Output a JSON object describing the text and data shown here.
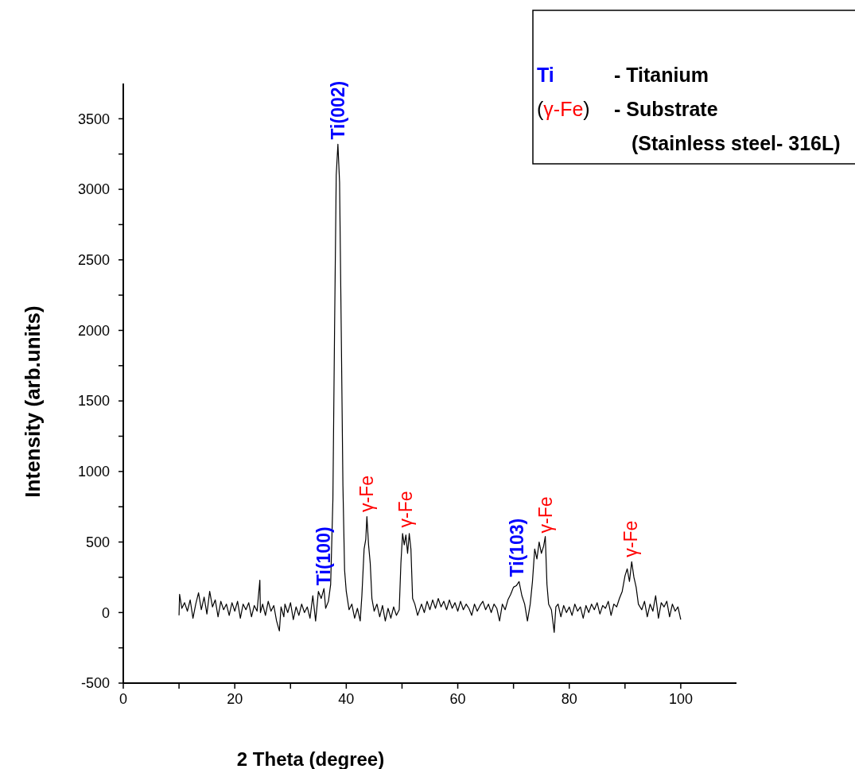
{
  "chart_data": {
    "type": "line",
    "xlabel": "2 Theta (degree)",
    "ylabel": "Intensity (arb.units)",
    "xlim": [
      0,
      110
    ],
    "ylim": [
      -500,
      3750
    ],
    "xticks": [
      0,
      {
        "value": 10,
        "label": null
      },
      20,
      {
        "value": 30,
        "label": null
      },
      40,
      {
        "value": 50,
        "label": null
      },
      60,
      {
        "value": 70,
        "label": null
      },
      80,
      {
        "value": 90,
        "label": null
      },
      100
    ],
    "yticks": [
      -500,
      {
        "value": -250,
        "label": null
      },
      0,
      {
        "value": 250,
        "label": null
      },
      500,
      {
        "value": 750,
        "label": null
      },
      1000,
      {
        "value": 1250,
        "label": null
      },
      1500,
      {
        "value": 1750,
        "label": null
      },
      2000,
      {
        "value": 2250,
        "label": null
      },
      2500,
      {
        "value": 2750,
        "label": null
      },
      3000,
      {
        "value": 3250,
        "label": null
      },
      3500
    ],
    "grid": false,
    "marker": "none",
    "line_style": "solid",
    "series": [
      {
        "color": "#000000",
        "x": [
          10,
          10.1,
          10.5,
          11,
          11.5,
          12,
          12.5,
          13,
          13.5,
          14,
          14.5,
          15,
          15.5,
          16,
          16.5,
          17,
          17.5,
          18,
          18.5,
          19,
          19.5,
          20,
          20.5,
          21,
          21.5,
          22,
          22.5,
          23,
          23.5,
          24,
          24.5,
          24.6,
          25,
          25.5,
          26,
          26.5,
          27,
          27.5,
          28,
          28.3,
          28.8,
          29,
          29.5,
          30,
          30.5,
          31,
          31.5,
          32,
          32.5,
          33,
          33.5,
          34,
          34.5,
          35,
          35.5,
          36,
          36.3,
          36.8,
          37.2,
          37.6,
          37.9,
          38.2,
          38.5,
          38.8,
          39.1,
          39.4,
          39.7,
          40,
          40.5,
          41,
          41.5,
          42,
          42.5,
          42.8,
          43.2,
          43.5,
          43.7,
          44,
          44.3,
          44.6,
          45,
          45.5,
          46,
          46.5,
          47,
          47.5,
          48,
          48.5,
          49,
          49.5,
          49.8,
          50.1,
          50.4,
          50.7,
          51,
          51.3,
          51.6,
          51.9,
          52.3,
          52.8,
          53.5,
          54,
          54.5,
          55,
          55.5,
          56,
          56.5,
          57,
          57.5,
          58,
          58.5,
          59,
          59.5,
          60,
          60.5,
          61,
          61.5,
          62,
          62.5,
          63,
          63.5,
          64,
          64.5,
          65,
          65.5,
          66,
          66.5,
          67,
          67.5,
          68,
          68.5,
          69,
          69.5,
          70,
          70.5,
          71,
          71.5,
          72,
          72.5,
          73,
          73.4,
          73.8,
          74.2,
          74.6,
          75,
          75.4,
          75.7,
          76,
          76.3,
          76.8,
          77.3,
          77.6,
          78,
          78.5,
          79,
          79.5,
          80,
          80.5,
          81,
          81.5,
          82,
          82.5,
          83,
          83.5,
          84,
          84.5,
          85,
          85.5,
          86,
          86.5,
          87,
          87.5,
          88,
          88.5,
          89,
          89.5,
          90,
          90.4,
          90.8,
          91.2,
          91.6,
          92,
          92.4,
          93,
          93.5,
          94,
          94.5,
          95,
          95.5,
          96,
          96.5,
          97,
          97.5,
          98,
          98.5,
          99,
          99.5,
          100
        ],
        "values": [
          -20,
          130,
          30,
          70,
          10,
          90,
          -40,
          60,
          140,
          20,
          110,
          -10,
          150,
          40,
          90,
          -30,
          80,
          20,
          60,
          -20,
          70,
          10,
          80,
          -40,
          60,
          20,
          70,
          -30,
          50,
          10,
          230,
          0,
          60,
          -20,
          80,
          10,
          50,
          -60,
          -130,
          40,
          -30,
          60,
          0,
          70,
          -50,
          40,
          -20,
          60,
          0,
          40,
          -40,
          120,
          -60,
          150,
          100,
          170,
          30,
          80,
          200,
          800,
          2000,
          3100,
          3320,
          3050,
          2000,
          900,
          300,
          150,
          20,
          60,
          -40,
          30,
          -60,
          120,
          450,
          520,
          680,
          480,
          350,
          100,
          10,
          60,
          -30,
          50,
          -60,
          30,
          -40,
          40,
          -20,
          20,
          350,
          560,
          480,
          550,
          420,
          560,
          450,
          100,
          60,
          -20,
          60,
          0,
          80,
          20,
          90,
          30,
          100,
          40,
          80,
          20,
          90,
          30,
          70,
          10,
          80,
          20,
          60,
          30,
          -20,
          60,
          10,
          50,
          80,
          20,
          60,
          0,
          60,
          30,
          -60,
          60,
          20,
          90,
          130,
          180,
          190,
          220,
          120,
          60,
          -60,
          60,
          220,
          450,
          380,
          500,
          420,
          470,
          540,
          200,
          60,
          20,
          -140,
          40,
          60,
          -30,
          50,
          0,
          40,
          -20,
          60,
          10,
          40,
          -40,
          50,
          0,
          60,
          20,
          70,
          -10,
          50,
          30,
          80,
          -20,
          60,
          40,
          100,
          150,
          260,
          310,
          220,
          360,
          250,
          180,
          60,
          20,
          80,
          -30,
          60,
          10,
          120,
          -40,
          70,
          40,
          80,
          -30,
          60,
          10,
          40,
          -50
        ]
      }
    ],
    "annotations": [
      {
        "text": "Ti(100)",
        "x": 36,
        "y": 170
      },
      {
        "text": "Ti(002)",
        "x": 38.5,
        "y": 3330
      },
      {
        "text": "γ-Fe",
        "x": 43.7,
        "y": 690
      },
      {
        "text": "γ-Fe",
        "x": 50.7,
        "y": 580
      },
      {
        "text": "Ti(103)",
        "x": 70.6,
        "y": 230
      },
      {
        "text": "γ-Fe",
        "x": 75.7,
        "y": 540
      },
      {
        "text": "γ-Fe",
        "x": 91,
        "y": 370
      },
      "Ti - Titanium",
      "(γ-Fe) - Substrate",
      "(Stainless steel- 316L)"
    ]
  }
}
